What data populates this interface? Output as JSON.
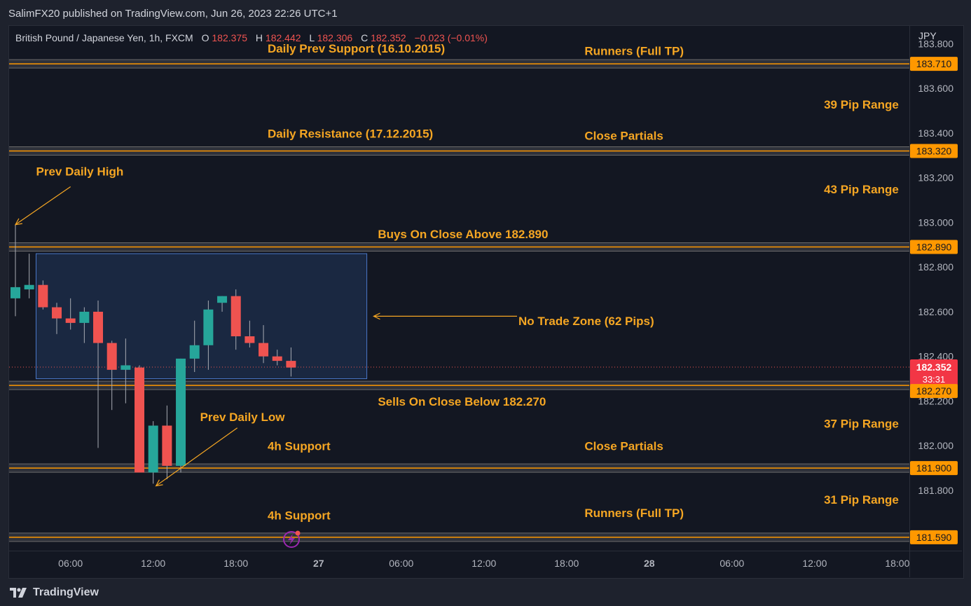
{
  "publisher": "SalimFX20 published on TradingView.com, Jun 26, 2023 22:26 UTC+1",
  "brand": "TradingView",
  "header": {
    "symbol": "British Pound / Japanese Yen, 1h, FXCM",
    "o_label": "O",
    "o_value": "182.375",
    "h_label": "H",
    "h_value": "182.442",
    "l_label": "L",
    "l_value": "182.306",
    "c_label": "C",
    "c_value": "182.352",
    "change": "−0.023 (−0.01%)"
  },
  "colors": {
    "background": "#131722",
    "up": "#26a69a",
    "down": "#ef5350",
    "level": "#ff9800",
    "annotation": "#f5a623",
    "zone_fill": "#1c2b47",
    "zone_border": "#4a78c8",
    "text": "#d1d4dc"
  },
  "chart_data": {
    "type": "candlestick",
    "currency": "JPY",
    "ylim": [
      181.53,
      183.88
    ],
    "yticks": [
      "183.800",
      "183.600",
      "183.400",
      "183.200",
      "183.000",
      "182.800",
      "182.600",
      "182.400",
      "182.200",
      "182.000",
      "181.800"
    ],
    "xtick_labels": [
      {
        "idx": 4,
        "label": "06:00",
        "bold": false
      },
      {
        "idx": 10,
        "label": "12:00",
        "bold": false
      },
      {
        "idx": 16,
        "label": "18:00",
        "bold": false
      },
      {
        "idx": 22,
        "label": "27",
        "bold": true
      },
      {
        "idx": 28,
        "label": "06:00",
        "bold": false
      },
      {
        "idx": 34,
        "label": "12:00",
        "bold": false
      },
      {
        "idx": 40,
        "label": "18:00",
        "bold": false
      },
      {
        "idx": 46,
        "label": "28",
        "bold": true
      },
      {
        "idx": 52,
        "label": "06:00",
        "bold": false
      },
      {
        "idx": 58,
        "label": "12:00",
        "bold": false
      },
      {
        "idx": 64,
        "label": "18:00",
        "bold": false
      }
    ],
    "candles": [
      {
        "o": 182.66,
        "h": 182.99,
        "l": 182.58,
        "c": 182.71
      },
      {
        "o": 182.7,
        "h": 182.86,
        "l": 182.66,
        "c": 182.72
      },
      {
        "o": 182.72,
        "h": 182.74,
        "l": 182.61,
        "c": 182.62
      },
      {
        "o": 182.62,
        "h": 182.64,
        "l": 182.5,
        "c": 182.57
      },
      {
        "o": 182.57,
        "h": 182.66,
        "l": 182.52,
        "c": 182.55
      },
      {
        "o": 182.55,
        "h": 182.62,
        "l": 182.46,
        "c": 182.6
      },
      {
        "o": 182.6,
        "h": 182.65,
        "l": 181.99,
        "c": 182.46
      },
      {
        "o": 182.46,
        "h": 182.47,
        "l": 182.16,
        "c": 182.34
      },
      {
        "o": 182.34,
        "h": 182.48,
        "l": 182.19,
        "c": 182.36
      },
      {
        "o": 182.35,
        "h": 182.36,
        "l": 181.9,
        "c": 181.88
      },
      {
        "o": 181.88,
        "h": 182.11,
        "l": 181.83,
        "c": 182.09
      },
      {
        "o": 182.09,
        "h": 182.18,
        "l": 181.85,
        "c": 181.91
      },
      {
        "o": 181.91,
        "h": 182.39,
        "l": 181.88,
        "c": 182.39
      },
      {
        "o": 182.39,
        "h": 182.56,
        "l": 182.33,
        "c": 182.45
      },
      {
        "o": 182.45,
        "h": 182.65,
        "l": 182.34,
        "c": 182.61
      },
      {
        "o": 182.64,
        "h": 182.67,
        "l": 182.6,
        "c": 182.67
      },
      {
        "o": 182.67,
        "h": 182.7,
        "l": 182.43,
        "c": 182.49
      },
      {
        "o": 182.49,
        "h": 182.56,
        "l": 182.44,
        "c": 182.46
      },
      {
        "o": 182.46,
        "h": 182.54,
        "l": 182.37,
        "c": 182.4
      },
      {
        "o": 182.4,
        "h": 182.43,
        "l": 182.36,
        "c": 182.38
      },
      {
        "o": 182.38,
        "h": 182.44,
        "l": 182.31,
        "c": 182.35
      }
    ],
    "levels": [
      {
        "price": 183.71,
        "label": "183.710"
      },
      {
        "price": 183.32,
        "label": "183.320"
      },
      {
        "price": 182.89,
        "label": "182.890"
      },
      {
        "price": 182.27,
        "label": "182.270"
      },
      {
        "price": 181.9,
        "label": "181.900"
      },
      {
        "price": 181.59,
        "label": "181.590"
      }
    ],
    "current_price": {
      "price": 182.352,
      "label": "182.352",
      "countdown": "33:31"
    },
    "no_trade_zone": {
      "x_start": 2,
      "x_end": 26,
      "y_low": 182.3,
      "y_high": 182.86
    },
    "annotations": [
      {
        "text": "Daily Prev Support (16.10.2015)",
        "x": 18.3,
        "y": 183.76,
        "anchor": "start"
      },
      {
        "text": "Runners (Full TP)",
        "x": 41.3,
        "y": 183.75,
        "anchor": "start"
      },
      {
        "text": "39 Pip Range",
        "x": 64.1,
        "y": 183.51,
        "anchor": "end"
      },
      {
        "text": "Daily Resistance (17.12.2015)",
        "x": 18.3,
        "y": 183.38,
        "anchor": "start"
      },
      {
        "text": "Close Partials",
        "x": 41.3,
        "y": 183.37,
        "anchor": "start"
      },
      {
        "text": "Prev Daily High",
        "x": 1.5,
        "y": 183.21,
        "anchor": "start"
      },
      {
        "text": "43 Pip Range",
        "x": 64.1,
        "y": 183.13,
        "anchor": "end"
      },
      {
        "text": "Buys On Close Above 182.890",
        "x": 26.3,
        "y": 182.93,
        "anchor": "start"
      },
      {
        "text": "No Trade Zone (62 Pips)",
        "x": 36.5,
        "y": 182.54,
        "anchor": "start"
      },
      {
        "text": "Sells On Close Below 182.270",
        "x": 26.3,
        "y": 182.18,
        "anchor": "start"
      },
      {
        "text": "Prev Daily Low",
        "x": 13.4,
        "y": 182.11,
        "anchor": "start"
      },
      {
        "text": "37 Pip Range",
        "x": 64.1,
        "y": 182.08,
        "anchor": "end"
      },
      {
        "text": "4h Support",
        "x": 18.3,
        "y": 181.98,
        "anchor": "start"
      },
      {
        "text": "Close Partials",
        "x": 41.3,
        "y": 181.98,
        "anchor": "start"
      },
      {
        "text": "31 Pip Range",
        "x": 64.1,
        "y": 181.74,
        "anchor": "end"
      },
      {
        "text": "4h Support",
        "x": 18.3,
        "y": 181.67,
        "anchor": "start"
      },
      {
        "text": "Runners (Full TP)",
        "x": 41.3,
        "y": 181.68,
        "anchor": "start"
      }
    ],
    "arrows": [
      {
        "name": "prev-daily-high-arrow",
        "x1": 4.0,
        "y1": 183.16,
        "x2": 0.0,
        "y2": 182.99
      },
      {
        "name": "prev-daily-low-arrow",
        "x1": 16.1,
        "y1": 182.08,
        "x2": 10.2,
        "y2": 181.82
      },
      {
        "name": "no-trade-zone-arrow",
        "x1": 36.4,
        "y1": 182.58,
        "x2": 26.0,
        "y2": 182.58
      }
    ]
  }
}
